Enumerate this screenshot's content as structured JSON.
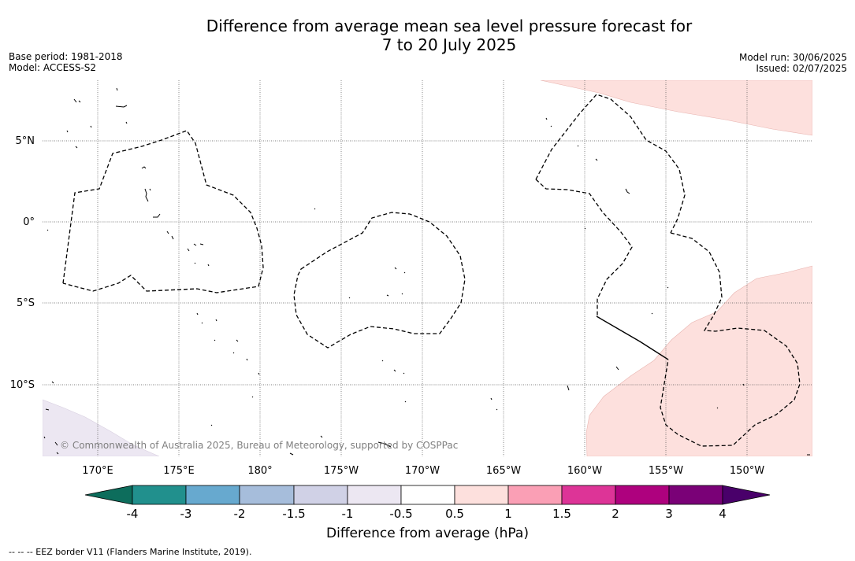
{
  "title_line1": "Difference from average mean sea level pressure forecast for",
  "title_line2": "7 to 20 July 2025",
  "base_period": "Base period: 1981-2018",
  "model": "Model: ACCESS-S2",
  "model_run": "Model run: 30/06/2025",
  "issued": "Issued: 02/07/2025",
  "lat_labels": [
    "5°N",
    "0°",
    "5°S",
    "10°S"
  ],
  "lon_labels": [
    "170°E",
    "175°E",
    "180°",
    "175°W",
    "170°W",
    "165°W",
    "160°W",
    "155°W",
    "150°W"
  ],
  "copyright": "© Commonwealth of Australia 2025, Bureau of Meteorology, supported by COSPPac",
  "colorbar": {
    "title": "Difference from average (hPa)",
    "tick_labels": [
      "-4",
      "-3",
      "-2",
      "-1.5",
      "-1",
      "-0.5",
      "0.5",
      "1",
      "1.5",
      "2",
      "3",
      "4"
    ],
    "colors": [
      "#0d6d5c",
      "#21908d",
      "#67a9cf",
      "#a6bddb",
      "#d0d1e6",
      "#ece7f2",
      "#ffffff",
      "#fde0dd",
      "#fa9fb5",
      "#dd3497",
      "#ae017e",
      "#7a0177",
      "#49006a"
    ]
  },
  "footnote": "--  --  -- EEZ border V11 (Flanders Marine Institute, 2019)."
}
